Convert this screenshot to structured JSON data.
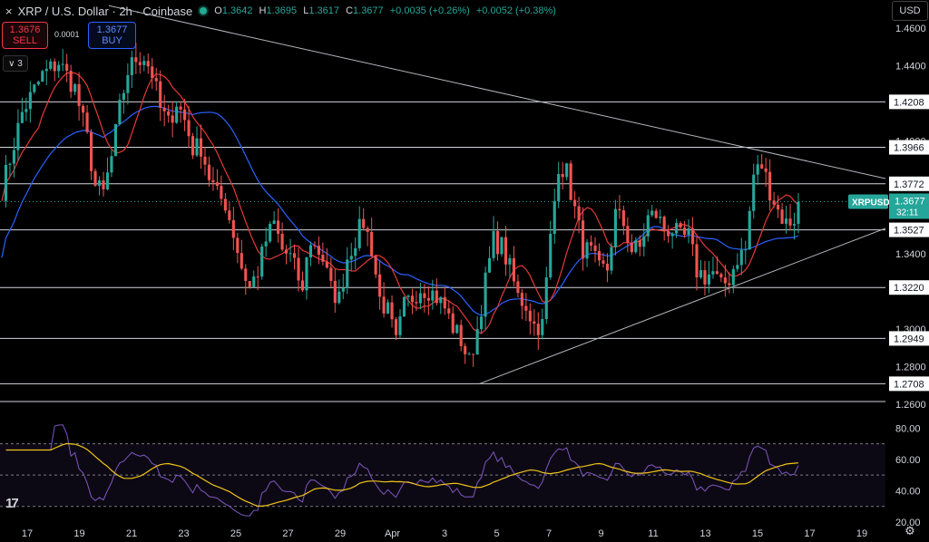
{
  "header": {
    "close_symbol": "×",
    "title": "XRP / U.S. Dollar · 2h · Coinbase",
    "ohlc": [
      {
        "label": "O",
        "value": "1.3642"
      },
      {
        "label": "H",
        "value": "1.3695"
      },
      {
        "label": "L",
        "value": "1.3617"
      },
      {
        "label": "C",
        "value": "1.3677"
      }
    ],
    "change": "+0.0035 (+0.26%)",
    "change2": "+0.0052 (+0.38%)",
    "status_color": "#22ab94"
  },
  "trade": {
    "sell_price": "1.3676",
    "sell_label": "SELL",
    "spread": "0.0001",
    "buy_price": "1.3677",
    "buy_label": "BUY",
    "collapse_label": "∨ 3"
  },
  "currency": "USD",
  "chart_data": {
    "type": "candlestick",
    "symbol": "XRPUSD",
    "price_label": "1.3677",
    "countdown": "32:11",
    "y_axis_ticks": [
      "1.4600",
      "1.4400",
      "1.4000",
      "1.3400",
      "1.3000",
      "1.2800",
      "1.2600"
    ],
    "horizontal_levels": [
      "1.4208",
      "1.3966",
      "1.3772",
      "1.3527",
      "1.3220",
      "1.2949",
      "1.2708"
    ],
    "ylim": [
      1.257,
      1.475
    ],
    "x_axis_labels": [
      "17",
      "19",
      "21",
      "23",
      "25",
      "27",
      "29",
      "Apr",
      "3",
      "5",
      "7",
      "9",
      "11",
      "13",
      "15",
      "17",
      "19"
    ],
    "close_path": [
      [
        0,
        1.374
      ],
      [
        5,
        1.415
      ],
      [
        10,
        1.435
      ],
      [
        14,
        1.442
      ],
      [
        18,
        1.428
      ],
      [
        21,
        1.401
      ],
      [
        23,
        1.376
      ],
      [
        25,
        1.372
      ],
      [
        27,
        1.391
      ],
      [
        29,
        1.417
      ],
      [
        31,
        1.437
      ],
      [
        33,
        1.444
      ],
      [
        35,
        1.445
      ],
      [
        37,
        1.436
      ],
      [
        39,
        1.417
      ],
      [
        41,
        1.409
      ],
      [
        43,
        1.421
      ],
      [
        45,
        1.411
      ],
      [
        47,
        1.396
      ],
      [
        49,
        1.397
      ],
      [
        51,
        1.381
      ],
      [
        53,
        1.371
      ],
      [
        55,
        1.367
      ],
      [
        57,
        1.351
      ],
      [
        59,
        1.333
      ],
      [
        61,
        1.322
      ],
      [
        63,
        1.331
      ],
      [
        65,
        1.347
      ],
      [
        67,
        1.356
      ],
      [
        69,
        1.342
      ],
      [
        71,
        1.338
      ],
      [
        73,
        1.327
      ],
      [
        74,
        1.318
      ],
      [
        75,
        1.341
      ],
      [
        77,
        1.346
      ],
      [
        79,
        1.337
      ],
      [
        81,
        1.321
      ],
      [
        83,
        1.316
      ],
      [
        85,
        1.338
      ],
      [
        87,
        1.348
      ],
      [
        89,
        1.357
      ],
      [
        91,
        1.343
      ],
      [
        93,
        1.316
      ],
      [
        95,
        1.309
      ],
      [
        97,
        1.292
      ],
      [
        99,
        1.312
      ],
      [
        101,
        1.317
      ],
      [
        103,
        1.322
      ],
      [
        105,
        1.321
      ],
      [
        107,
        1.317
      ],
      [
        109,
        1.311
      ],
      [
        111,
        1.301
      ],
      [
        113,
        1.294
      ],
      [
        115,
        1.282
      ],
      [
        117,
        1.3
      ],
      [
        119,
        1.325
      ],
      [
        121,
        1.347
      ],
      [
        123,
        1.344
      ],
      [
        125,
        1.332
      ],
      [
        127,
        1.317
      ],
      [
        129,
        1.313
      ],
      [
        131,
        1.302
      ],
      [
        133,
        1.302
      ],
      [
        135,
        1.348
      ],
      [
        137,
        1.388
      ],
      [
        139,
        1.383
      ],
      [
        141,
        1.363
      ],
      [
        143,
        1.343
      ],
      [
        145,
        1.34
      ],
      [
        147,
        1.331
      ],
      [
        149,
        1.332
      ],
      [
        151,
        1.361
      ],
      [
        153,
        1.356
      ],
      [
        155,
        1.342
      ],
      [
        157,
        1.343
      ],
      [
        159,
        1.359
      ],
      [
        161,
        1.361
      ],
      [
        163,
        1.353
      ],
      [
        165,
        1.353
      ],
      [
        167,
        1.348
      ],
      [
        169,
        1.349
      ],
      [
        171,
        1.331
      ],
      [
        173,
        1.328
      ],
      [
        175,
        1.33
      ],
      [
        177,
        1.322
      ],
      [
        179,
        1.327
      ],
      [
        181,
        1.338
      ],
      [
        183,
        1.342
      ],
      [
        185,
        1.382
      ],
      [
        187,
        1.387
      ],
      [
        189,
        1.374
      ],
      [
        191,
        1.363
      ],
      [
        193,
        1.356
      ],
      [
        195,
        1.359
      ],
      [
        196,
        1.3677
      ]
    ],
    "bars_total": 196,
    "rsi": {
      "ylim": [
        20,
        90
      ],
      "ticks": [
        "80.00",
        "60.00",
        "40.00",
        "20.00"
      ],
      "upper_band": 70,
      "lower_band": 30
    },
    "colors": {
      "up": "#26a69a",
      "down": "#ef5350",
      "ma_fast": "#e53935",
      "ma_slow": "#2962ff",
      "rsi": "#7e57c2",
      "rsi_ma": "#f0c419",
      "price_tag": "#26a69a"
    },
    "grid": false
  }
}
